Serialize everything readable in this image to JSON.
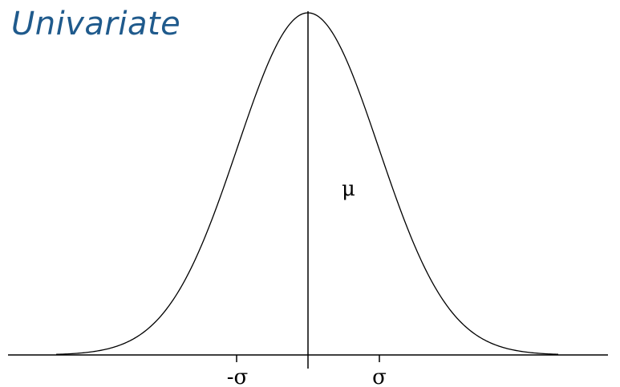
{
  "title": "Univariate",
  "mean_label": "μ",
  "neg_sigma_label": "-σ",
  "pos_sigma_label": "σ",
  "colors": {
    "title": "#1f5a8c",
    "curve": "#000000",
    "axis": "#000000",
    "background": "#ffffff"
  }
}
